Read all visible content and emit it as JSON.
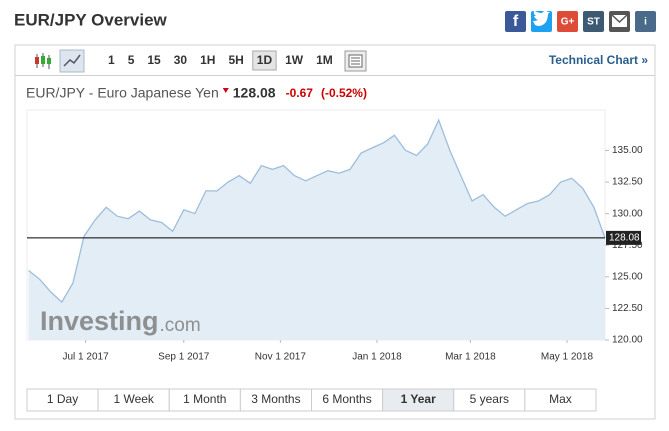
{
  "header": {
    "title": "EUR/JPY Overview",
    "share_labels": [
      "f",
      "G+",
      "ST",
      "i"
    ]
  },
  "toolbar": {
    "intervals": [
      "1",
      "5",
      "15",
      "30",
      "1H",
      "5H",
      "1D",
      "1W",
      "1M"
    ],
    "selected_interval": "1D",
    "technical_link": "Technical Chart »"
  },
  "quote": {
    "last": 128.08,
    "change": -0.67,
    "change_pct": {
      "value": -0.52,
      "label": "(-0.52%)"
    }
  },
  "watermark": {
    "brand": "Investing",
    "suffix": ".com"
  },
  "chart_data": {
    "type": "area",
    "x": [
      "2017-05-26",
      "2017-06-02",
      "2017-06-09",
      "2017-06-16",
      "2017-06-23",
      "2017-06-30",
      "2017-07-07",
      "2017-07-14",
      "2017-07-21",
      "2017-07-28",
      "2017-08-04",
      "2017-08-11",
      "2017-08-18",
      "2017-08-25",
      "2017-09-01",
      "2017-09-08",
      "2017-09-15",
      "2017-09-22",
      "2017-09-29",
      "2017-10-06",
      "2017-10-13",
      "2017-10-20",
      "2017-10-27",
      "2017-11-03",
      "2017-11-10",
      "2017-11-17",
      "2017-11-24",
      "2017-12-01",
      "2017-12-08",
      "2017-12-15",
      "2017-12-22",
      "2017-12-29",
      "2018-01-05",
      "2018-01-12",
      "2018-01-19",
      "2018-01-26",
      "2018-02-02",
      "2018-02-09",
      "2018-02-16",
      "2018-02-23",
      "2018-03-02",
      "2018-03-09",
      "2018-03-16",
      "2018-03-23",
      "2018-03-30",
      "2018-04-06",
      "2018-04-13",
      "2018-04-20",
      "2018-04-27",
      "2018-05-04",
      "2018-05-11",
      "2018-05-18",
      "2018-05-25"
    ],
    "series": [
      {
        "name": "EUR/JPY - Euro Japanese Yen",
        "color": "#9dbddc",
        "values": [
          125.5,
          124.8,
          123.8,
          123.0,
          124.5,
          128.2,
          129.5,
          130.5,
          129.8,
          129.6,
          130.2,
          129.5,
          129.3,
          128.6,
          130.3,
          130.0,
          131.8,
          131.8,
          132.5,
          133.0,
          132.4,
          133.8,
          133.5,
          133.8,
          133.0,
          132.6,
          133.0,
          133.4,
          133.2,
          133.5,
          134.8,
          135.2,
          135.6,
          136.2,
          135.0,
          134.6,
          135.5,
          137.4,
          135.0,
          133.0,
          131.0,
          131.5,
          130.5,
          129.8,
          130.3,
          130.8,
          131.0,
          131.5,
          132.5,
          132.8,
          132.0,
          130.5,
          128.08
        ]
      }
    ],
    "xlim": [
      "2017-05-25",
      "2018-05-25"
    ],
    "xticks": [
      {
        "value": "2017-07-01",
        "label": "Jul 1 2017"
      },
      {
        "value": "2017-09-01",
        "label": "Sep 1 2017"
      },
      {
        "value": "2017-11-01",
        "label": "Nov 1 2017"
      },
      {
        "value": "2018-01-01",
        "label": "Jan 1 2018"
      },
      {
        "value": "2018-03-01",
        "label": "Mar 1 2018"
      },
      {
        "value": "2018-05-01",
        "label": "May 1 2018"
      }
    ],
    "ylim": [
      120,
      138.2
    ],
    "yticks": [
      {
        "value": 120,
        "label": "120.00"
      },
      {
        "value": 122.5,
        "label": "122.50"
      },
      {
        "value": 125,
        "label": "125.00"
      },
      {
        "value": 127.5,
        "label": "127.50"
      },
      {
        "value": 130,
        "label": "130.00"
      },
      {
        "value": 132.5,
        "label": "132.50"
      },
      {
        "value": 135,
        "label": "135.00"
      }
    ]
  },
  "ranges": {
    "buttons": [
      "1 Day",
      "1 Week",
      "1 Month",
      "3 Months",
      "6 Months",
      "1 Year",
      "5 years",
      "Max"
    ],
    "selected": "1 Year"
  }
}
